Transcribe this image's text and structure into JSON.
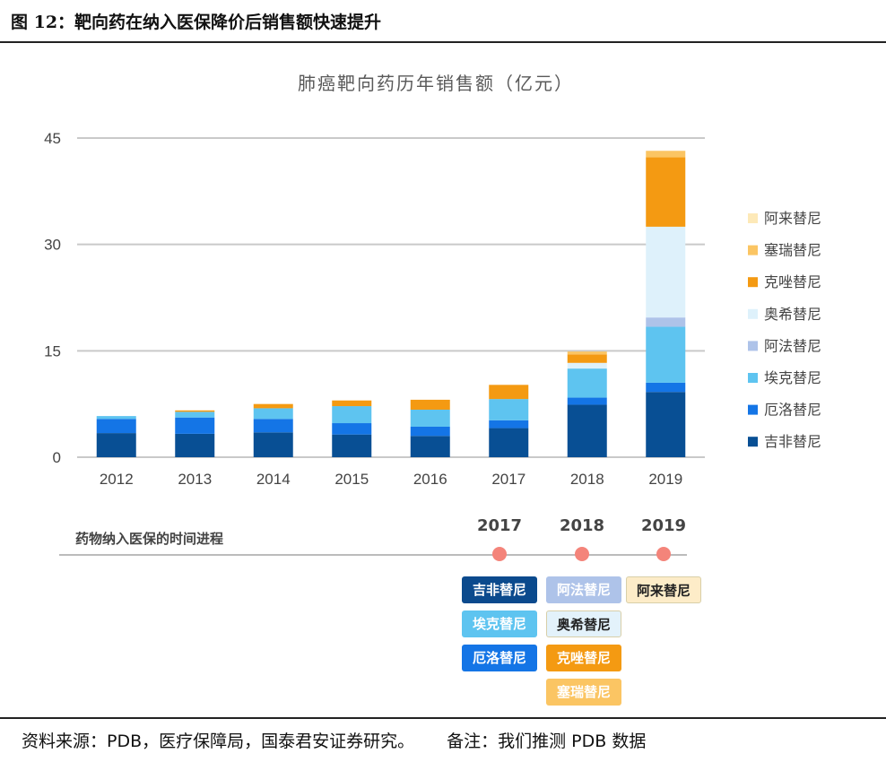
{
  "figure_title": "图 12：靶向药在纳入医保降价后销售额快速提升",
  "chart_data": {
    "type": "bar",
    "stacked": true,
    "title": "肺癌靶向药历年销售额（亿元）",
    "categories": [
      "2012",
      "2013",
      "2014",
      "2015",
      "2016",
      "2017",
      "2018",
      "2019"
    ],
    "ylim": [
      0,
      45
    ],
    "yticks": [
      0,
      15,
      30,
      45
    ],
    "grid": true,
    "legend_position": "right",
    "series": [
      {
        "name": "吉非替尼",
        "color": "#084f94",
        "values": [
          3.4,
          3.3,
          3.5,
          3.2,
          3.0,
          4.1,
          7.4,
          9.2
        ]
      },
      {
        "name": "厄洛替尼",
        "color": "#1475e6",
        "values": [
          2.0,
          2.3,
          1.9,
          1.6,
          1.3,
          1.1,
          1.0,
          1.3
        ]
      },
      {
        "name": "埃克替尼",
        "color": "#5ec4f0",
        "values": [
          0.4,
          0.8,
          1.5,
          2.4,
          2.4,
          3.0,
          4.1,
          7.9
        ]
      },
      {
        "name": "阿法替尼",
        "color": "#aec3e9",
        "values": [
          0,
          0,
          0,
          0,
          0,
          0,
          0,
          1.3
        ]
      },
      {
        "name": "奥希替尼",
        "color": "#def1fb",
        "values": [
          0,
          0,
          0,
          0,
          0,
          0,
          0.8,
          12.8
        ]
      },
      {
        "name": "克唑替尼",
        "color": "#f49a12",
        "values": [
          0,
          0.2,
          0.6,
          0.8,
          1.4,
          2.0,
          1.2,
          9.8
        ]
      },
      {
        "name": "塞瑞替尼",
        "color": "#fbc563",
        "values": [
          0,
          0,
          0,
          0,
          0,
          0,
          0.4,
          0.9
        ]
      },
      {
        "name": "阿来替尼",
        "color": "#fde9b8",
        "values": [
          0,
          0,
          0,
          0,
          0,
          0,
          0,
          0
        ]
      }
    ]
  },
  "timeline": {
    "label": "药物纳入医保的时间进程",
    "years": [
      "2017",
      "2018",
      "2019"
    ],
    "drugs": [
      {
        "name": "吉非替尼",
        "year": "2017",
        "bg": "#0b4a8d",
        "fg": "#ffffff"
      },
      {
        "name": "埃克替尼",
        "year": "2017",
        "bg": "#5ec4f0",
        "fg": "#ffffff"
      },
      {
        "name": "厄洛替尼",
        "year": "2017",
        "bg": "#1475e6",
        "fg": "#ffffff"
      },
      {
        "name": "阿法替尼",
        "year": "2018",
        "bg": "#aec3e9",
        "fg": "#ffffff"
      },
      {
        "name": "奥希替尼",
        "year": "2018",
        "bg": "#e3f2fb",
        "fg": "#222222"
      },
      {
        "name": "克唑替尼",
        "year": "2018",
        "bg": "#f49a12",
        "fg": "#ffffff"
      },
      {
        "name": "塞瑞替尼",
        "year": "2018",
        "bg": "#fbc563",
        "fg": "#ffffff"
      },
      {
        "name": "阿来替尼",
        "year": "2019",
        "bg": "#fdecc8",
        "fg": "#222222"
      }
    ]
  },
  "footer": {
    "source": "资料来源：PDB，医疗保障局，国泰君安证券研究。",
    "note": "备注：我们推测 PDB 数据"
  }
}
